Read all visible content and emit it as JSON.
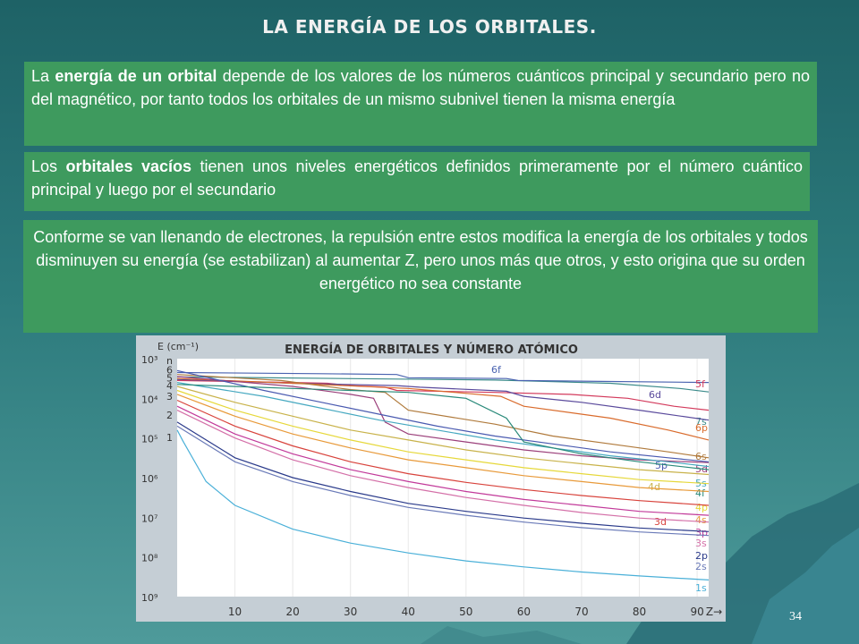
{
  "slide": {
    "title": "LA ENERGÍA DE LOS ORBITALES.",
    "page_number": "34"
  },
  "paragraphs": [
    {
      "parts": [
        {
          "text": "La ",
          "bold": false
        },
        {
          "text": "energía de un orbital",
          "bold": true
        },
        {
          "text": " depende de los valores de los números cuánticos principal y secundario pero no del magnético, por tanto todos los orbitales de un mismo subnivel tienen la misma energía",
          "bold": false
        }
      ]
    },
    {
      "parts": [
        {
          "text": "Los ",
          "bold": false
        },
        {
          "text": "orbitales vacíos",
          "bold": true
        },
        {
          "text": " tienen unos niveles energéticos definidos primeramente por el número cuántico principal y luego por el secundario",
          "bold": false
        }
      ]
    },
    {
      "parts": [
        {
          "text": "Conforme se van llenando de electrones, la repulsión entre estos modifica la energía de los orbitales y todos disminuyen su energía (se estabilizan) al aumentar Z, pero unos más que otros, y esto origina que su orden energético no sea constante",
          "bold": false
        }
      ]
    }
  ],
  "chart_data": {
    "type": "line",
    "title": "ENERGÍA DE ORBITALES Y NÚMERO ATÓMICO",
    "ylabel": "E (cm⁻¹)",
    "xlabel": "Z",
    "x_ticks": [
      10,
      20,
      30,
      40,
      50,
      60,
      70,
      80,
      90
    ],
    "xlim": [
      0,
      92
    ],
    "y_scale": "log",
    "y_ticks": [
      "10³",
      "10⁴",
      "10⁵",
      "10⁶",
      "10⁷",
      "10⁸",
      "10⁹"
    ],
    "ylim_exponent": [
      3,
      9
    ],
    "left_labels": [
      "n",
      "6",
      "5",
      "4",
      "3",
      "2",
      "1"
    ],
    "series": [
      {
        "name": "7s",
        "color": "#3a8a8a",
        "x": [
          0,
          7,
          55,
          75,
          87,
          92
        ],
        "y": [
          3.46,
          3.47,
          3.54,
          3.62,
          3.75,
          3.84
        ]
      },
      {
        "name": "6f",
        "color": "#4a63b0",
        "x": [
          0,
          25,
          38,
          40,
          57,
          59,
          92
        ],
        "y": [
          3.35,
          3.38,
          3.4,
          3.48,
          3.5,
          3.55,
          3.6
        ]
      },
      {
        "name": "5f",
        "color": "#d33a5c",
        "x": [
          0,
          20,
          26,
          30,
          36,
          38,
          55,
          68,
          78,
          86,
          92
        ],
        "y": [
          3.55,
          3.6,
          3.62,
          3.68,
          3.72,
          3.8,
          3.85,
          3.9,
          4.0,
          4.2,
          4.3
        ]
      },
      {
        "name": "6d",
        "color": "#5a4a9c",
        "x": [
          0,
          20,
          38,
          42,
          57,
          60,
          70,
          80,
          92
        ],
        "y": [
          3.52,
          3.62,
          3.68,
          3.72,
          3.82,
          3.95,
          4.1,
          4.3,
          4.55
        ]
      },
      {
        "name": "6p",
        "color": "#d96b2c",
        "x": [
          0,
          20,
          40,
          56,
          60,
          75,
          85,
          92
        ],
        "y": [
          3.5,
          3.62,
          3.75,
          3.95,
          4.2,
          4.5,
          4.8,
          5.05
        ]
      },
      {
        "name": "6s",
        "color": "#b07a3c",
        "x": [
          0,
          18,
          30,
          36,
          40,
          55,
          65,
          75,
          85,
          92
        ],
        "y": [
          3.4,
          3.55,
          3.78,
          3.85,
          4.3,
          4.65,
          4.95,
          5.15,
          5.35,
          5.5
        ]
      },
      {
        "name": "5d",
        "color": "#9b3f7a",
        "x": [
          0,
          20,
          30,
          34,
          36,
          40,
          50,
          60,
          70,
          80,
          92
        ],
        "y": [
          3.45,
          3.7,
          3.9,
          4.0,
          4.6,
          4.9,
          5.1,
          5.3,
          5.45,
          5.55,
          5.62
        ]
      },
      {
        "name": "5p",
        "color": "#4a5ab0",
        "x": [
          0,
          15,
          25,
          35,
          45,
          55,
          65,
          75,
          85,
          92
        ],
        "y": [
          3.3,
          3.8,
          4.1,
          4.4,
          4.7,
          4.95,
          5.15,
          5.35,
          5.5,
          5.6
        ]
      },
      {
        "name": "5s",
        "color": "#45a8c0",
        "x": [
          0,
          15,
          25,
          35,
          45,
          55,
          65,
          75,
          85,
          92
        ],
        "y": [
          3.6,
          3.95,
          4.25,
          4.55,
          4.8,
          5.05,
          5.25,
          5.45,
          5.6,
          5.72
        ]
      },
      {
        "name": "4f",
        "color": "#2a8a7a",
        "x": [
          0,
          20,
          40,
          50,
          57,
          60,
          70,
          80,
          92
        ],
        "y": [
          3.65,
          3.75,
          3.85,
          4.0,
          4.5,
          5.1,
          5.4,
          5.6,
          5.8
        ]
      },
      {
        "name": "4d",
        "color": "#c8b24a",
        "x": [
          0,
          10,
          20,
          30,
          40,
          50,
          60,
          70,
          80,
          92
        ],
        "y": [
          3.7,
          4.1,
          4.45,
          4.8,
          5.05,
          5.3,
          5.5,
          5.65,
          5.8,
          5.92
        ]
      },
      {
        "name": "4p",
        "color": "#e6d83a",
        "x": [
          0,
          10,
          20,
          30,
          40,
          50,
          60,
          70,
          80,
          92
        ],
        "y": [
          3.8,
          4.3,
          4.7,
          5.05,
          5.35,
          5.55,
          5.75,
          5.9,
          6.05,
          6.15
        ]
      },
      {
        "name": "4s",
        "color": "#e89a3a",
        "x": [
          0,
          10,
          20,
          30,
          40,
          50,
          60,
          70,
          80,
          92
        ],
        "y": [
          3.9,
          4.45,
          4.9,
          5.25,
          5.55,
          5.75,
          5.95,
          6.1,
          6.25,
          6.35
        ]
      },
      {
        "name": "3d",
        "color": "#d8433c",
        "x": [
          0,
          10,
          20,
          30,
          40,
          50,
          60,
          70,
          80,
          92
        ],
        "y": [
          4.05,
          4.7,
          5.2,
          5.6,
          5.9,
          6.12,
          6.3,
          6.45,
          6.58,
          6.7
        ]
      },
      {
        "name": "3p",
        "color": "#c23a9a",
        "x": [
          0,
          10,
          20,
          30,
          40,
          50,
          60,
          70,
          80,
          92
        ],
        "y": [
          4.2,
          4.9,
          5.4,
          5.8,
          6.1,
          6.35,
          6.55,
          6.7,
          6.85,
          6.95
        ]
      },
      {
        "name": "3s",
        "color": "#d470a8",
        "x": [
          0,
          10,
          20,
          30,
          40,
          50,
          60,
          70,
          80,
          92
        ],
        "y": [
          4.3,
          5.0,
          5.55,
          5.95,
          6.25,
          6.5,
          6.7,
          6.88,
          7.02,
          7.12
        ]
      },
      {
        "name": "2p",
        "color": "#2a3a8a",
        "x": [
          0,
          10,
          20,
          30,
          40,
          50,
          60,
          70,
          80,
          92
        ],
        "y": [
          4.6,
          5.5,
          6.0,
          6.35,
          6.65,
          6.85,
          7.02,
          7.15,
          7.27,
          7.36
        ]
      },
      {
        "name": "2s",
        "color": "#6a7ab8",
        "x": [
          0,
          10,
          20,
          30,
          40,
          50,
          60,
          70,
          80,
          92
        ],
        "y": [
          4.7,
          5.6,
          6.1,
          6.45,
          6.75,
          6.95,
          7.12,
          7.26,
          7.37,
          7.46
        ]
      },
      {
        "name": "1s",
        "color": "#4ab0d8",
        "x": [
          0,
          1,
          5,
          10,
          20,
          30,
          40,
          50,
          60,
          70,
          80,
          92
        ],
        "y": [
          4.8,
          5.08,
          6.1,
          6.7,
          7.3,
          7.65,
          7.9,
          8.1,
          8.25,
          8.38,
          8.48,
          8.58
        ]
      }
    ]
  }
}
